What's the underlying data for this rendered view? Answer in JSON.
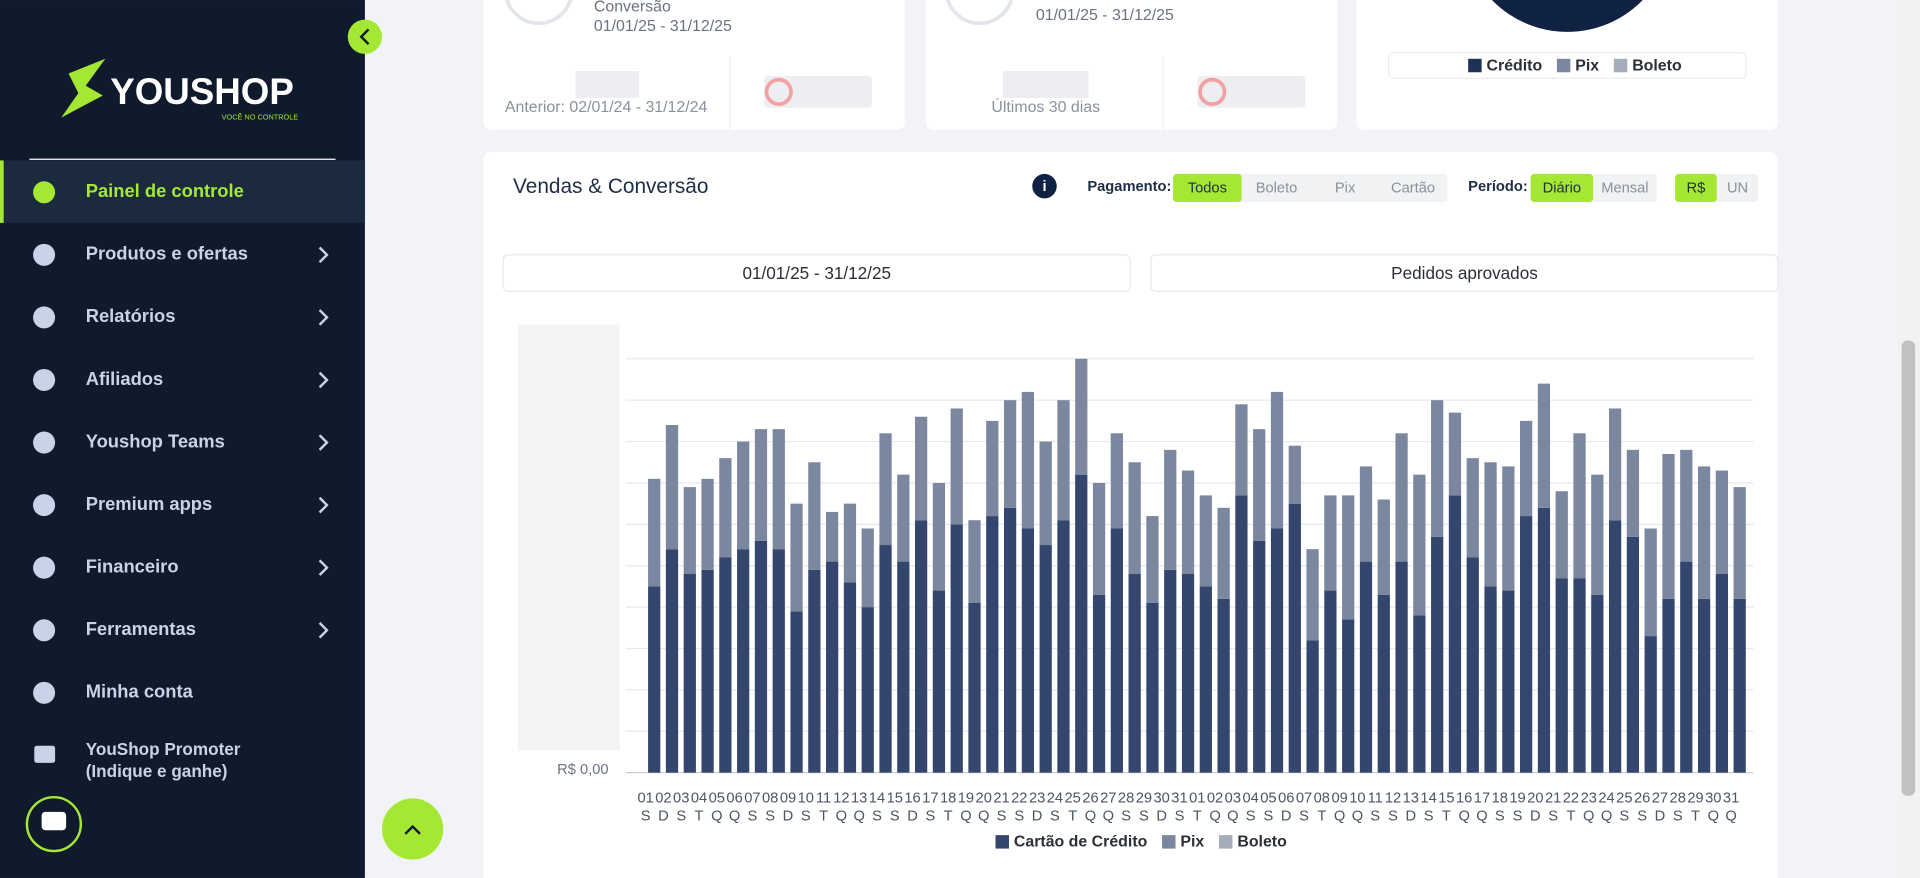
{
  "sidebar": {
    "logo": "YOUSHOP",
    "tagline": "VOCÊ NO CONTROLE",
    "menu": [
      {
        "label": "Painel de controle",
        "active": true
      },
      {
        "label": "Produtos e ofertas",
        "chevron": true
      },
      {
        "label": "Relatórios",
        "chevron": true
      },
      {
        "label": "Afiliados",
        "chevron": true
      },
      {
        "label": "Youshop Teams",
        "chevron": true
      },
      {
        "label": "Premium apps",
        "chevron": true
      },
      {
        "label": "Financeiro",
        "chevron": true
      },
      {
        "label": "Ferramentas",
        "chevron": true
      },
      {
        "label": "Minha conta"
      }
    ],
    "promoter": [
      "YouShop Promoter",
      "(Indique e ganhe)"
    ]
  },
  "cards": {
    "card1": {
      "title": "Conversão",
      "range": "01/01/25 - 31/12/25",
      "previous": "Anterior: 02/01/24 - 31/12/24"
    },
    "card2": {
      "range": "01/01/25 - 31/12/25",
      "previous": "Últimos 30 dias"
    },
    "card3": {
      "legend": [
        "Crédito",
        "Pix",
        "Boleto"
      ]
    }
  },
  "section": {
    "title": "Vendas & Conversão",
    "payment_label": "Pagamento:",
    "payment": [
      "Todos",
      "Boleto",
      "Pix",
      "Cartão"
    ],
    "period_label": "Período:",
    "period": [
      "Diário",
      "Mensal"
    ],
    "unit": [
      "R$",
      "UN"
    ],
    "range": "01/01/25 - 31/12/25",
    "status": "Pedidos aprovados"
  },
  "chart_data": {
    "type": "stacked_bar",
    "categories": [
      "01",
      "02",
      "03",
      "04",
      "05",
      "06",
      "07",
      "08",
      "09",
      "10",
      "11",
      "12",
      "13",
      "14",
      "15",
      "16",
      "17",
      "18",
      "19",
      "20",
      "21",
      "22",
      "23",
      "24",
      "25",
      "26",
      "27",
      "28",
      "29",
      "30",
      "31",
      "01",
      "02",
      "03",
      "04",
      "05",
      "06",
      "07",
      "08",
      "09",
      "10",
      "11",
      "12",
      "13",
      "14",
      "15",
      "16",
      "17",
      "18",
      "19",
      "20",
      "21",
      "22",
      "23",
      "24",
      "25",
      "26",
      "27",
      "28",
      "29",
      "30",
      "31"
    ],
    "weekdays": [
      "S",
      "D",
      "S",
      "T",
      "Q",
      "Q",
      "S",
      "S",
      "D",
      "S",
      "T",
      "Q",
      "Q",
      "S",
      "S",
      "D",
      "S",
      "T",
      "Q",
      "Q",
      "S",
      "S",
      "D",
      "S",
      "T",
      "Q",
      "Q",
      "S",
      "S",
      "D",
      "S",
      "T",
      "Q",
      "Q",
      "S",
      "S",
      "D",
      "S",
      "T",
      "Q",
      "Q",
      "S",
      "S",
      "D",
      "S",
      "T",
      "Q",
      "Q",
      "S",
      "S",
      "D",
      "S",
      "T",
      "Q",
      "Q",
      "S",
      "S",
      "D",
      "S",
      "T",
      "Q",
      "Q"
    ],
    "series": [
      {
        "name": "Cartão de Crédito",
        "color": "#34466e",
        "values": [
          4.5,
          5.4,
          4.8,
          4.9,
          5.2,
          5.4,
          5.6,
          5.4,
          3.9,
          4.9,
          5.1,
          4.6,
          4.0,
          5.5,
          5.1,
          6.1,
          4.4,
          6.0,
          4.1,
          6.2,
          6.4,
          5.9,
          5.5,
          6.1,
          7.2,
          4.3,
          5.9,
          4.8,
          4.1,
          4.9,
          4.8,
          4.5,
          4.2,
          6.7,
          5.6,
          5.9,
          6.5,
          3.2,
          4.4,
          3.7,
          5.1,
          4.3,
          5.1,
          3.8,
          5.7,
          6.7,
          5.2,
          4.5,
          4.4,
          6.2,
          6.4,
          4.7,
          4.7,
          4.3,
          6.1,
          5.7,
          3.3,
          4.2,
          5.1,
          4.2,
          4.8,
          4.2
        ]
      },
      {
        "name": "Pix",
        "color": "#7a879f",
        "values": [
          2.6,
          3.0,
          2.1,
          2.2,
          2.4,
          2.6,
          2.7,
          2.9,
          2.6,
          2.6,
          1.2,
          1.9,
          1.9,
          2.7,
          2.1,
          2.5,
          2.6,
          2.8,
          2.0,
          2.3,
          2.6,
          3.3,
          2.5,
          2.9,
          2.8,
          2.7,
          2.3,
          2.7,
          2.1,
          2.9,
          2.5,
          2.2,
          2.2,
          2.2,
          2.7,
          3.3,
          1.4,
          2.2,
          2.3,
          3.0,
          2.3,
          2.3,
          3.1,
          3.4,
          3.3,
          2.0,
          2.4,
          3.0,
          3.0,
          2.3,
          3.0,
          2.1,
          3.5,
          2.9,
          2.7,
          2.1,
          2.6,
          3.5,
          2.7,
          3.2,
          2.5,
          2.7
        ]
      },
      {
        "name": "Boleto",
        "color": "#a6adba",
        "values": [
          0,
          0,
          0,
          0,
          0,
          0,
          0,
          0,
          0,
          0,
          0,
          0,
          0,
          0,
          0,
          0,
          0,
          0,
          0,
          0,
          0,
          0,
          0,
          0,
          0,
          0,
          0,
          0,
          0,
          0,
          0,
          0,
          0,
          0,
          0,
          0,
          0,
          0,
          0,
          0,
          0,
          0,
          0,
          0,
          0,
          0,
          0,
          0,
          0,
          0,
          0,
          0,
          0,
          0,
          0,
          0,
          0,
          0,
          0,
          0,
          0,
          0
        ]
      }
    ],
    "ylim": [
      0,
      10
    ],
    "yticks": [
      {
        "value": 0,
        "label": "R$ 0,00"
      }
    ],
    "ygrid": [
      0,
      1,
      2,
      3,
      4,
      5,
      6,
      7,
      8,
      9,
      10
    ]
  }
}
